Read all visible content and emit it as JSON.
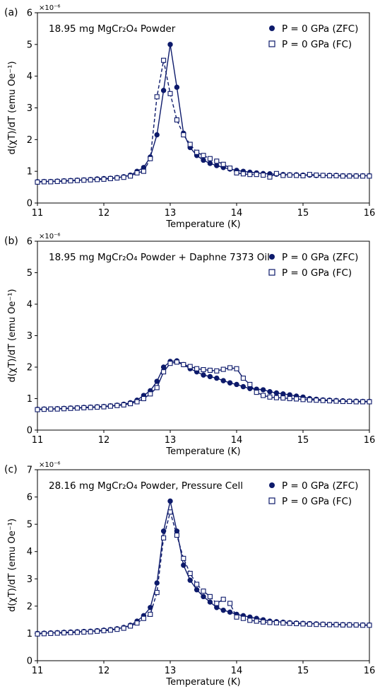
{
  "colors": {
    "series": "#0d1a6b",
    "axis": "#000000",
    "background": "#ffffff"
  },
  "chart_data": [
    {
      "type": "line",
      "panel_label": "(a)",
      "annotation": "18.95 mg MgCr₂O₄ Powder",
      "xlabel": "Temperature (K)",
      "ylabel": "d(χT)/dT (emu Oe⁻¹)",
      "y_multiplier": "×10⁻⁶",
      "xlim": [
        11,
        16
      ],
      "ylim": [
        0,
        6
      ],
      "xticks": [
        11,
        12,
        13,
        14,
        15,
        16
      ],
      "yticks": [
        0,
        1,
        2,
        3,
        4,
        5,
        6
      ],
      "legend_position": "top-right",
      "series": [
        {
          "name": "P = 0 GPa (ZFC)",
          "marker": "filled-circle",
          "line": "solid",
          "x": [
            11.0,
            11.1,
            11.2,
            11.3,
            11.4,
            11.5,
            11.6,
            11.7,
            11.8,
            11.9,
            12.0,
            12.1,
            12.2,
            12.3,
            12.4,
            12.5,
            12.6,
            12.7,
            12.8,
            12.9,
            13.0,
            13.1,
            13.2,
            13.3,
            13.4,
            13.5,
            13.6,
            13.7,
            13.8,
            13.9,
            14.0,
            14.1,
            14.2,
            14.3,
            14.4,
            14.5,
            14.6,
            14.7,
            14.8,
            14.9,
            15.0,
            15.1,
            15.2,
            15.3,
            15.4,
            15.5,
            15.6,
            15.7,
            15.8,
            15.9,
            16.0
          ],
          "y": [
            0.67,
            0.68,
            0.68,
            0.69,
            0.7,
            0.71,
            0.72,
            0.73,
            0.74,
            0.76,
            0.77,
            0.78,
            0.8,
            0.83,
            0.88,
            1.0,
            1.12,
            1.45,
            2.15,
            3.55,
            5.0,
            3.65,
            2.2,
            1.75,
            1.5,
            1.35,
            1.25,
            1.18,
            1.12,
            1.07,
            1.03,
            1.0,
            0.97,
            0.95,
            0.93,
            0.92,
            0.91,
            0.9,
            0.89,
            0.89,
            0.88,
            0.88,
            0.87,
            0.87,
            0.87,
            0.87,
            0.86,
            0.86,
            0.86,
            0.86,
            0.86
          ]
        },
        {
          "name": "P = 0 GPa (FC)",
          "marker": "open-square",
          "line": "dashed",
          "x": [
            11.0,
            11.1,
            11.2,
            11.3,
            11.4,
            11.5,
            11.6,
            11.7,
            11.8,
            11.9,
            12.0,
            12.1,
            12.2,
            12.3,
            12.4,
            12.5,
            12.6,
            12.7,
            12.8,
            12.9,
            13.0,
            13.1,
            13.2,
            13.3,
            13.4,
            13.5,
            13.6,
            13.7,
            13.8,
            13.9,
            14.0,
            14.1,
            14.2,
            14.3,
            14.4,
            14.5,
            14.6,
            14.7,
            14.8,
            14.9,
            15.0,
            15.1,
            15.2,
            15.3,
            15.4,
            15.5,
            15.6,
            15.7,
            15.8,
            15.9,
            16.0
          ],
          "y": [
            0.66,
            0.67,
            0.67,
            0.68,
            0.69,
            0.7,
            0.71,
            0.72,
            0.73,
            0.74,
            0.75,
            0.77,
            0.79,
            0.81,
            0.85,
            0.95,
            1.0,
            1.4,
            3.35,
            4.5,
            3.45,
            2.62,
            2.15,
            1.85,
            1.6,
            1.5,
            1.4,
            1.32,
            1.22,
            1.1,
            0.95,
            0.92,
            0.9,
            0.9,
            0.88,
            0.82,
            0.93,
            0.87,
            0.88,
            0.87,
            0.86,
            0.9,
            0.88,
            0.87,
            0.86,
            0.86,
            0.85,
            0.85,
            0.85,
            0.85,
            0.85
          ]
        }
      ]
    },
    {
      "type": "line",
      "panel_label": "(b)",
      "annotation": "18.95 mg MgCr₂O₄ Powder + Daphne 7373 Oil",
      "xlabel": "Temperature (K)",
      "ylabel": "d(χT)/dT (emu Oe⁻¹)",
      "y_multiplier": "×10⁻⁶",
      "xlim": [
        11,
        16
      ],
      "ylim": [
        0,
        6
      ],
      "xticks": [
        11,
        12,
        13,
        14,
        15,
        16
      ],
      "yticks": [
        0,
        1,
        2,
        3,
        4,
        5,
        6
      ],
      "legend_position": "top-right",
      "series": [
        {
          "name": "P = 0 GPa (ZFC)",
          "marker": "filled-circle",
          "line": "solid",
          "x": [
            11.0,
            11.1,
            11.2,
            11.3,
            11.4,
            11.5,
            11.6,
            11.7,
            11.8,
            11.9,
            12.0,
            12.1,
            12.2,
            12.3,
            12.4,
            12.5,
            12.6,
            12.7,
            12.8,
            12.9,
            13.0,
            13.1,
            13.2,
            13.3,
            13.4,
            13.5,
            13.6,
            13.7,
            13.8,
            13.9,
            14.0,
            14.1,
            14.2,
            14.3,
            14.4,
            14.5,
            14.6,
            14.7,
            14.8,
            14.9,
            15.0,
            15.1,
            15.2,
            15.3,
            15.4,
            15.5,
            15.6,
            15.7,
            15.8,
            15.9,
            16.0
          ],
          "y": [
            0.66,
            0.67,
            0.67,
            0.68,
            0.69,
            0.7,
            0.71,
            0.72,
            0.73,
            0.74,
            0.75,
            0.77,
            0.79,
            0.82,
            0.87,
            0.95,
            1.1,
            1.25,
            1.55,
            2.0,
            2.18,
            2.2,
            2.08,
            1.95,
            1.85,
            1.75,
            1.7,
            1.65,
            1.57,
            1.5,
            1.45,
            1.38,
            1.32,
            1.3,
            1.28,
            1.22,
            1.18,
            1.15,
            1.12,
            1.08,
            1.05,
            1.0,
            0.98,
            0.96,
            0.95,
            0.94,
            0.93,
            0.92,
            0.92,
            0.91,
            0.91
          ]
        },
        {
          "name": "P = 0 GPa (FC)",
          "marker": "open-square",
          "line": "solid",
          "x": [
            11.0,
            11.1,
            11.2,
            11.3,
            11.4,
            11.5,
            11.6,
            11.7,
            11.8,
            11.9,
            12.0,
            12.1,
            12.2,
            12.3,
            12.4,
            12.5,
            12.6,
            12.7,
            12.8,
            12.9,
            13.0,
            13.1,
            13.2,
            13.3,
            13.4,
            13.5,
            13.6,
            13.7,
            13.8,
            13.9,
            14.0,
            14.1,
            14.2,
            14.3,
            14.4,
            14.5,
            14.6,
            14.7,
            14.8,
            14.9,
            15.0,
            15.1,
            15.2,
            15.3,
            15.4,
            15.5,
            15.6,
            15.7,
            15.8,
            15.9,
            16.0
          ],
          "y": [
            0.65,
            0.66,
            0.67,
            0.67,
            0.68,
            0.69,
            0.7,
            0.71,
            0.72,
            0.73,
            0.74,
            0.76,
            0.78,
            0.8,
            0.84,
            0.9,
            1.0,
            1.15,
            1.35,
            1.85,
            2.12,
            2.16,
            2.08,
            2.02,
            1.95,
            1.92,
            1.9,
            1.88,
            1.93,
            1.98,
            1.95,
            1.65,
            1.45,
            1.2,
            1.1,
            1.05,
            1.03,
            1.02,
            1.0,
            0.99,
            0.97,
            0.96,
            0.95,
            0.94,
            0.93,
            0.92,
            0.91,
            0.91,
            0.9,
            0.9,
            0.9
          ]
        }
      ]
    },
    {
      "type": "line",
      "panel_label": "(c)",
      "annotation": "28.16 mg MgCr₂O₄ Powder, Pressure Cell",
      "xlabel": "Temperature (K)",
      "ylabel": "d(χT)/dT (emu Oe⁻¹)",
      "y_multiplier": "×10⁻⁶",
      "xlim": [
        11,
        16
      ],
      "ylim": [
        0,
        7
      ],
      "xticks": [
        11,
        12,
        13,
        14,
        15,
        16
      ],
      "yticks": [
        0,
        1,
        2,
        3,
        4,
        5,
        6,
        7
      ],
      "legend_position": "top-right",
      "series": [
        {
          "name": "P = 0 GPa (ZFC)",
          "marker": "filled-circle",
          "line": "solid",
          "x": [
            11.0,
            11.1,
            11.2,
            11.3,
            11.4,
            11.5,
            11.6,
            11.7,
            11.8,
            11.9,
            12.0,
            12.1,
            12.2,
            12.3,
            12.4,
            12.5,
            12.6,
            12.7,
            12.8,
            12.9,
            13.0,
            13.1,
            13.2,
            13.3,
            13.4,
            13.5,
            13.6,
            13.7,
            13.8,
            13.9,
            14.0,
            14.1,
            14.2,
            14.3,
            14.4,
            14.5,
            14.6,
            14.7,
            14.8,
            14.9,
            15.0,
            15.1,
            15.2,
            15.3,
            15.4,
            15.5,
            15.6,
            15.7,
            15.8,
            15.9,
            16.0
          ],
          "y": [
            1.0,
            1.01,
            1.02,
            1.03,
            1.04,
            1.05,
            1.06,
            1.07,
            1.08,
            1.1,
            1.12,
            1.14,
            1.17,
            1.22,
            1.3,
            1.45,
            1.65,
            1.95,
            2.85,
            4.75,
            5.85,
            4.75,
            3.5,
            2.95,
            2.6,
            2.35,
            2.15,
            1.95,
            1.85,
            1.78,
            1.7,
            1.65,
            1.6,
            1.55,
            1.5,
            1.45,
            1.43,
            1.41,
            1.39,
            1.38,
            1.37,
            1.36,
            1.35,
            1.34,
            1.33,
            1.33,
            1.32,
            1.32,
            1.31,
            1.31,
            1.31
          ]
        },
        {
          "name": "P = 0 GPa (FC)",
          "marker": "open-square",
          "line": "dashed",
          "x": [
            11.0,
            11.1,
            11.2,
            11.3,
            11.4,
            11.5,
            11.6,
            11.7,
            11.8,
            11.9,
            12.0,
            12.1,
            12.2,
            12.3,
            12.4,
            12.5,
            12.6,
            12.7,
            12.8,
            12.9,
            13.0,
            13.1,
            13.2,
            13.3,
            13.4,
            13.5,
            13.6,
            13.7,
            13.8,
            13.9,
            14.0,
            14.1,
            14.2,
            14.3,
            14.4,
            14.5,
            14.6,
            14.7,
            14.8,
            14.9,
            15.0,
            15.1,
            15.2,
            15.3,
            15.4,
            15.5,
            15.6,
            15.7,
            15.8,
            15.9,
            16.0
          ],
          "y": [
            0.98,
            0.99,
            1.0,
            1.01,
            1.02,
            1.03,
            1.04,
            1.05,
            1.06,
            1.08,
            1.1,
            1.12,
            1.15,
            1.19,
            1.27,
            1.38,
            1.55,
            1.7,
            2.5,
            4.5,
            5.45,
            4.6,
            3.75,
            3.2,
            2.8,
            2.55,
            2.35,
            2.1,
            2.25,
            2.1,
            1.6,
            1.55,
            1.48,
            1.45,
            1.42,
            1.4,
            1.39,
            1.38,
            1.37,
            1.36,
            1.35,
            1.34,
            1.33,
            1.33,
            1.32,
            1.32,
            1.31,
            1.31,
            1.31,
            1.3,
            1.3
          ]
        }
      ]
    }
  ]
}
